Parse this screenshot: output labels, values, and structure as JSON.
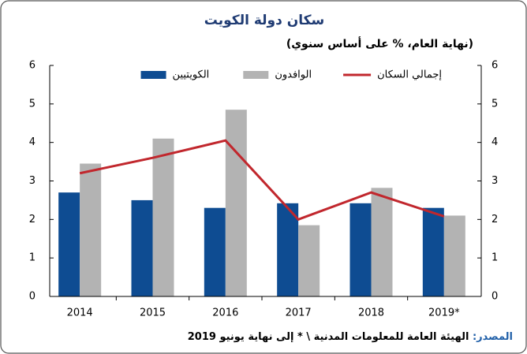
{
  "chart_data": {
    "type": "bar_line",
    "title": "سكان دولة الكويت",
    "subtitle": "(نهاية العام، % على أساس سنوي)",
    "source_label": "المصدر:",
    "source_text": "الهيئة العامة للمعلومات المدنية \\ * إلى نهاية يونيو 2019",
    "categories": [
      "2014",
      "2015",
      "2016",
      "2017",
      "2018",
      "2019*"
    ],
    "series": [
      {
        "name": "الكويتيين",
        "type": "bar",
        "color": "#0e4c92",
        "values": [
          2.7,
          2.5,
          2.3,
          2.42,
          2.42,
          2.3
        ]
      },
      {
        "name": "الوافدون",
        "type": "bar",
        "color": "#b3b3b3",
        "values": [
          3.45,
          4.1,
          4.85,
          1.85,
          2.82,
          2.1
        ]
      },
      {
        "name": "إجمالي السكان",
        "type": "line",
        "color": "#c1272d",
        "values": [
          3.2,
          3.6,
          4.05,
          2.0,
          2.7,
          2.08
        ]
      }
    ],
    "ylim": [
      0,
      6
    ],
    "yticks": [
      0,
      1,
      2,
      3,
      4,
      5,
      6
    ],
    "y2lim": [
      0,
      6
    ],
    "y2ticks": [
      0,
      1,
      2,
      3,
      4,
      5,
      6
    ]
  }
}
